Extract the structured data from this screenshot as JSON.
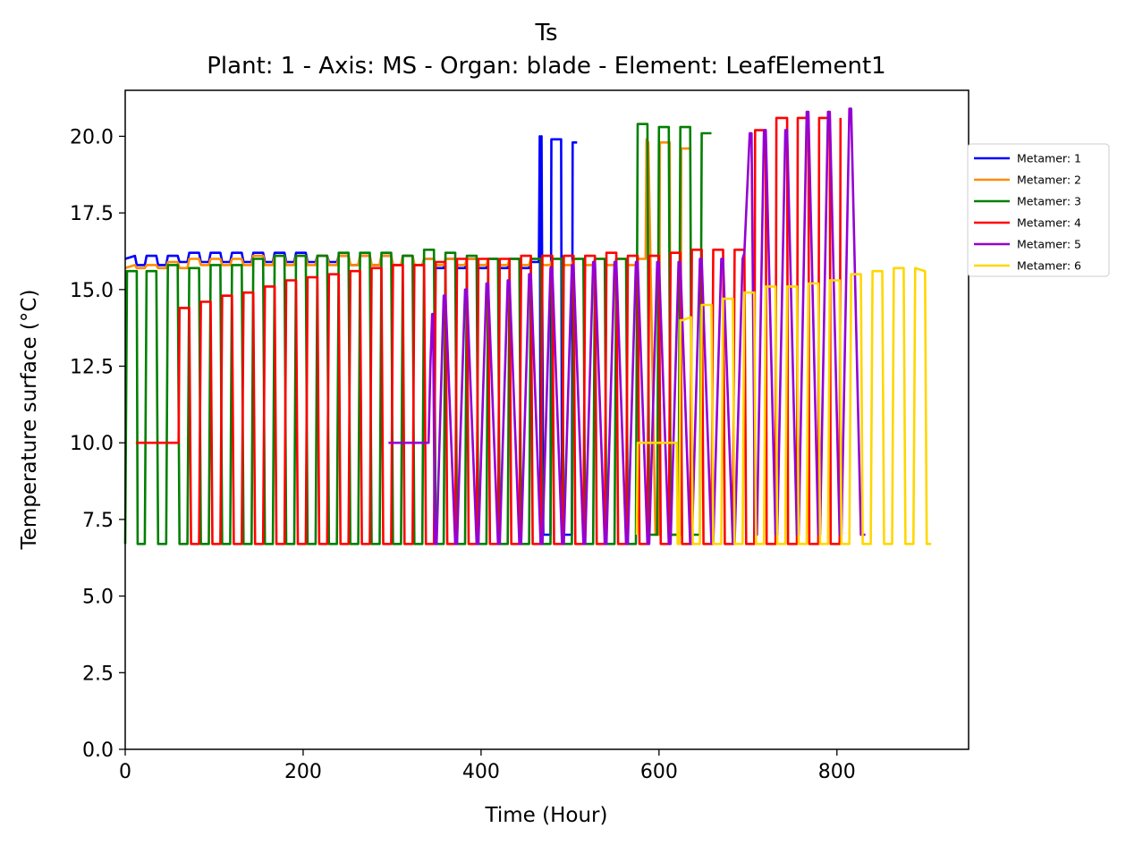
{
  "chart_data": {
    "type": "line",
    "title": "Ts",
    "subtitle": "Plant: 1 - Axis: MS - Organ: blade - Element: LeafElement1",
    "xlabel": "Time (Hour)",
    "ylabel": "Temperature surface (°C)",
    "xlim": [
      0,
      948
    ],
    "ylim": [
      0,
      21.5
    ],
    "x_ticks": [
      0,
      200,
      400,
      600,
      800
    ],
    "y_ticks": [
      0.0,
      2.5,
      5.0,
      7.5,
      10.0,
      12.5,
      15.0,
      17.5,
      20.0
    ],
    "x_tick_labels": [
      "0",
      "200",
      "400",
      "600",
      "800"
    ],
    "y_tick_labels": [
      "0.0",
      "2.5",
      "5.0",
      "7.5",
      "10.0",
      "12.5",
      "15.0",
      "17.5",
      "20.0"
    ],
    "grid": false,
    "legend_position": "right",
    "series": [
      {
        "name": "Metamer: 1",
        "color": "#0000ff",
        "x": [
          0,
          11,
          13,
          22,
          24,
          35,
          37,
          46,
          48,
          59,
          61,
          70,
          72,
          83,
          85,
          94,
          96,
          107,
          109,
          118,
          120,
          131,
          133,
          142,
          144,
          155,
          157,
          166,
          168,
          179,
          181,
          190,
          192,
          203,
          205,
          214,
          216,
          227,
          229,
          238,
          240,
          251,
          253,
          262,
          264,
          275,
          277,
          286,
          288,
          299,
          301,
          310,
          312,
          323,
          325,
          334,
          336,
          347,
          349,
          358,
          360,
          371,
          373,
          382,
          384,
          395,
          397,
          406,
          408,
          419,
          421,
          430,
          432,
          443,
          445,
          454,
          456,
          465,
          466,
          467,
          468,
          470,
          478,
          479,
          490,
          491,
          502,
          503,
          508
        ],
        "y": [
          16.0,
          16.1,
          15.8,
          15.8,
          16.1,
          16.1,
          15.8,
          15.8,
          16.1,
          16.1,
          15.9,
          15.9,
          16.2,
          16.2,
          15.9,
          15.9,
          16.2,
          16.2,
          15.9,
          15.9,
          16.2,
          16.2,
          15.9,
          15.9,
          16.2,
          16.2,
          15.9,
          15.9,
          16.2,
          16.2,
          15.9,
          15.9,
          16.2,
          16.2,
          15.9,
          15.9,
          16.1,
          16.1,
          15.9,
          15.9,
          16.1,
          16.1,
          15.8,
          15.8,
          16.1,
          16.1,
          15.8,
          15.8,
          16.1,
          16.1,
          15.8,
          15.8,
          16.1,
          16.1,
          15.8,
          15.8,
          16.0,
          16.0,
          15.7,
          15.7,
          16.0,
          16.0,
          15.7,
          15.7,
          16.0,
          16.0,
          15.7,
          15.7,
          16.0,
          16.0,
          15.7,
          15.7,
          16.0,
          16.0,
          15.7,
          15.7,
          15.9,
          15.9,
          20.0,
          7.0,
          20.0,
          7.0,
          7.0,
          19.9,
          19.9,
          7.0,
          7.0,
          19.8,
          19.8
        ]
      },
      {
        "name": "Metamer: 2",
        "color": "#ff8c00",
        "x": [
          0,
          11,
          13,
          22,
          24,
          35,
          37,
          46,
          48,
          59,
          61,
          70,
          72,
          83,
          85,
          94,
          96,
          107,
          109,
          118,
          120,
          131,
          133,
          142,
          144,
          155,
          157,
          166,
          168,
          179,
          181,
          190,
          192,
          203,
          205,
          214,
          216,
          227,
          229,
          238,
          240,
          251,
          253,
          262,
          264,
          275,
          277,
          286,
          288,
          299,
          301,
          310,
          312,
          323,
          325,
          334,
          336,
          347,
          349,
          358,
          360,
          371,
          373,
          382,
          384,
          395,
          397,
          406,
          408,
          419,
          421,
          430,
          432,
          443,
          445,
          454,
          456,
          467,
          469,
          478,
          480,
          491,
          493,
          502,
          504,
          515,
          517,
          526,
          528,
          539,
          541,
          550,
          552,
          563,
          565,
          574,
          576,
          585,
          586,
          588,
          596,
          600,
          601,
          612,
          613,
          624,
          625,
          636
        ],
        "y": [
          15.7,
          15.8,
          15.7,
          15.7,
          15.8,
          15.8,
          15.7,
          15.7,
          15.9,
          15.9,
          15.7,
          15.7,
          16.0,
          16.0,
          15.8,
          15.8,
          16.0,
          16.0,
          15.8,
          15.8,
          16.0,
          16.0,
          15.8,
          15.8,
          16.1,
          16.1,
          15.8,
          15.8,
          16.1,
          16.1,
          15.8,
          15.8,
          16.1,
          16.1,
          15.8,
          15.8,
          16.1,
          16.1,
          15.8,
          15.8,
          16.1,
          16.1,
          15.8,
          15.8,
          16.1,
          16.1,
          15.8,
          15.8,
          16.1,
          16.1,
          15.8,
          15.8,
          16.1,
          16.1,
          15.8,
          15.8,
          16.0,
          16.0,
          15.8,
          15.8,
          16.0,
          16.0,
          15.8,
          15.8,
          16.0,
          16.0,
          15.8,
          15.8,
          16.0,
          16.0,
          15.8,
          15.8,
          16.0,
          16.0,
          15.8,
          15.8,
          16.0,
          16.0,
          15.8,
          15.8,
          16.0,
          16.0,
          15.8,
          15.8,
          16.0,
          16.0,
          15.8,
          15.8,
          16.0,
          16.0,
          15.8,
          15.8,
          16.0,
          16.0,
          15.8,
          15.8,
          16.0,
          16.0,
          19.9,
          19.8,
          7.0,
          7.0,
          19.8,
          19.8,
          7.0,
          7.0,
          19.6,
          19.6
        ]
      },
      {
        "name": "Metamer: 3",
        "color": "#008000",
        "x": [
          0,
          2,
          13,
          14,
          22,
          24,
          35,
          37,
          46,
          48,
          59,
          61,
          70,
          72,
          83,
          85,
          94,
          96,
          107,
          109,
          118,
          120,
          131,
          133,
          142,
          144,
          155,
          157,
          166,
          168,
          179,
          181,
          190,
          192,
          203,
          205,
          214,
          216,
          227,
          229,
          238,
          240,
          251,
          253,
          262,
          264,
          275,
          277,
          286,
          288,
          299,
          301,
          310,
          312,
          323,
          325,
          334,
          336,
          347,
          349,
          358,
          360,
          371,
          373,
          382,
          384,
          395,
          397,
          406,
          408,
          419,
          421,
          430,
          432,
          443,
          445,
          454,
          456,
          467,
          469,
          478,
          480,
          491,
          493,
          502,
          504,
          515,
          517,
          526,
          528,
          539,
          541,
          550,
          552,
          563,
          565,
          574,
          576,
          587,
          589,
          598,
          600,
          611,
          613,
          622,
          624,
          635,
          637,
          646,
          648,
          659
        ],
        "y": [
          6.7,
          15.6,
          15.6,
          6.7,
          6.7,
          15.6,
          15.6,
          6.7,
          6.7,
          15.8,
          15.8,
          6.7,
          6.7,
          15.7,
          15.7,
          6.7,
          6.7,
          15.8,
          15.8,
          6.7,
          6.7,
          15.8,
          15.8,
          6.7,
          6.7,
          16.0,
          16.0,
          6.7,
          6.7,
          16.1,
          16.1,
          6.7,
          6.7,
          16.1,
          16.1,
          6.7,
          6.7,
          16.1,
          16.1,
          6.7,
          6.7,
          16.2,
          16.2,
          6.7,
          6.7,
          16.2,
          16.2,
          6.7,
          6.7,
          16.2,
          16.2,
          6.7,
          6.7,
          16.1,
          16.1,
          6.7,
          6.7,
          16.3,
          16.3,
          6.7,
          6.7,
          16.2,
          16.2,
          6.7,
          6.7,
          16.1,
          16.1,
          6.7,
          6.7,
          16.0,
          16.0,
          6.7,
          6.7,
          16.0,
          16.0,
          6.7,
          6.7,
          16.0,
          16.0,
          6.7,
          6.7,
          16.0,
          16.0,
          6.7,
          6.7,
          16.0,
          16.0,
          6.7,
          6.7,
          16.0,
          16.0,
          6.7,
          6.7,
          16.0,
          16.0,
          6.7,
          6.7,
          20.4,
          20.4,
          7.0,
          7.0,
          20.3,
          20.3,
          7.0,
          7.0,
          20.3,
          20.3,
          7.0,
          7.0,
          20.1,
          20.1
        ]
      },
      {
        "name": "Metamer: 4",
        "color": "#ff0000",
        "x": [
          12,
          60,
          61,
          72,
          74,
          83,
          85,
          96,
          98,
          107,
          109,
          120,
          122,
          131,
          133,
          144,
          146,
          155,
          157,
          168,
          170,
          179,
          181,
          192,
          194,
          203,
          205,
          216,
          218,
          227,
          229,
          240,
          242,
          251,
          253,
          264,
          266,
          275,
          277,
          288,
          290,
          299,
          301,
          312,
          314,
          323,
          325,
          336,
          338,
          347,
          349,
          360,
          362,
          371,
          373,
          384,
          386,
          395,
          397,
          408,
          410,
          419,
          421,
          432,
          434,
          443,
          445,
          456,
          458,
          467,
          469,
          480,
          482,
          491,
          493,
          504,
          506,
          515,
          517,
          528,
          530,
          539,
          541,
          552,
          554,
          563,
          565,
          576,
          578,
          587,
          589,
          600,
          602,
          611,
          613,
          624,
          626,
          635,
          637,
          648,
          650,
          659,
          661,
          672,
          674,
          683,
          685,
          696,
          698,
          707,
          708,
          720,
          721,
          731,
          732,
          744,
          745,
          755,
          756,
          768,
          769,
          779,
          780,
          792,
          793,
          803,
          804
        ],
        "y": [
          10.0,
          10.0,
          14.4,
          14.4,
          6.7,
          6.7,
          14.6,
          14.6,
          6.7,
          6.7,
          14.8,
          14.8,
          6.7,
          6.7,
          14.9,
          14.9,
          6.7,
          6.7,
          15.1,
          15.1,
          6.7,
          6.7,
          15.3,
          15.3,
          6.7,
          6.7,
          15.4,
          15.4,
          6.7,
          6.7,
          15.5,
          15.5,
          6.7,
          6.7,
          15.6,
          15.6,
          6.7,
          6.7,
          15.7,
          15.7,
          6.7,
          6.7,
          15.8,
          15.8,
          6.7,
          6.7,
          15.8,
          15.8,
          6.7,
          6.7,
          15.9,
          15.9,
          6.7,
          6.7,
          16.0,
          16.0,
          6.7,
          6.7,
          16.0,
          16.0,
          6.7,
          6.7,
          16.0,
          16.0,
          6.7,
          6.7,
          16.1,
          16.1,
          6.7,
          6.7,
          16.1,
          16.1,
          6.7,
          6.7,
          16.1,
          16.1,
          6.7,
          6.7,
          16.1,
          16.1,
          6.7,
          6.7,
          16.2,
          16.2,
          6.7,
          6.7,
          16.1,
          16.1,
          6.7,
          6.7,
          16.1,
          16.1,
          6.7,
          6.7,
          16.2,
          16.2,
          6.7,
          6.7,
          16.3,
          16.3,
          6.7,
          6.7,
          16.3,
          16.3,
          6.7,
          6.7,
          16.3,
          16.3,
          6.7,
          6.7,
          20.2,
          20.2,
          6.7,
          6.7,
          20.6,
          20.6,
          6.7,
          6.7,
          20.6,
          20.6,
          6.7,
          6.7,
          20.6,
          20.6,
          6.7,
          6.7,
          20.6
        ]
      },
      {
        "name": "Metamer: 5",
        "color": "#9400d3",
        "x": [
          296,
          341,
          343,
          345,
          346,
          348,
          350,
          358,
          360,
          371,
          373,
          382,
          384,
          395,
          397,
          406,
          408,
          419,
          421,
          430,
          432,
          443,
          445,
          454,
          456,
          467,
          469,
          478,
          480,
          491,
          493,
          502,
          504,
          515,
          517,
          526,
          528,
          539,
          541,
          550,
          552,
          563,
          565,
          574,
          576,
          587,
          589,
          598,
          600,
          611,
          613,
          622,
          624,
          635,
          637,
          646,
          648,
          659,
          661,
          670,
          672,
          683,
          685,
          694,
          696,
          702,
          704,
          708,
          710,
          718,
          720,
          731,
          733,
          742,
          744,
          755,
          757,
          766,
          768,
          779,
          781,
          790,
          792,
          803,
          805,
          814,
          816,
          827,
          829,
          832
        ],
        "y": [
          10.0,
          10.0,
          12.5,
          14.2,
          14.2,
          6.7,
          6.7,
          14.8,
          14.8,
          6.7,
          6.7,
          15.0,
          15.0,
          6.7,
          6.7,
          15.2,
          15.2,
          6.7,
          6.7,
          15.3,
          15.3,
          6.7,
          6.7,
          15.5,
          15.5,
          6.7,
          6.7,
          15.7,
          15.7,
          6.7,
          6.7,
          15.8,
          15.8,
          6.7,
          6.7,
          15.9,
          15.9,
          6.7,
          6.7,
          15.9,
          15.9,
          6.7,
          6.7,
          15.9,
          15.9,
          6.7,
          6.7,
          15.9,
          15.9,
          6.7,
          6.7,
          15.9,
          15.9,
          6.7,
          6.7,
          16.0,
          16.0,
          6.7,
          6.7,
          16.0,
          16.0,
          6.7,
          6.7,
          16.0,
          16.2,
          20.1,
          20.1,
          7.0,
          7.0,
          20.2,
          20.2,
          7.0,
          7.0,
          20.2,
          20.2,
          7.0,
          7.0,
          20.8,
          20.8,
          7.0,
          7.0,
          20.8,
          20.8,
          7.0,
          7.0,
          20.9,
          20.9,
          7.0,
          7.0,
          7.0
        ]
      },
      {
        "name": "Metamer: 6",
        "color": "#ffd700",
        "x": [
          575,
          576,
          620,
          621,
          623,
          624,
          626,
          636,
          638,
          646,
          648,
          659,
          661,
          670,
          672,
          683,
          685,
          694,
          696,
          707,
          709,
          718,
          720,
          731,
          733,
          742,
          744,
          755,
          757,
          766,
          768,
          779,
          781,
          790,
          792,
          803,
          805,
          814,
          816,
          827,
          829,
          838,
          840,
          851,
          853,
          862,
          864,
          875,
          877,
          886,
          888,
          899,
          901,
          906
        ],
        "y": [
          7.0,
          10.0,
          10.0,
          6.7,
          6.7,
          14.0,
          14.0,
          14.1,
          6.7,
          6.7,
          14.5,
          14.5,
          6.7,
          6.7,
          14.7,
          14.7,
          6.7,
          6.7,
          14.9,
          14.9,
          6.7,
          6.7,
          15.1,
          15.1,
          6.7,
          6.7,
          15.1,
          15.1,
          6.7,
          6.7,
          15.2,
          15.2,
          6.7,
          6.7,
          15.3,
          15.3,
          6.7,
          6.7,
          15.5,
          15.5,
          6.7,
          6.7,
          15.6,
          15.6,
          6.7,
          6.7,
          15.7,
          15.7,
          6.7,
          6.7,
          15.7,
          15.6,
          6.7,
          6.7
        ]
      }
    ]
  }
}
